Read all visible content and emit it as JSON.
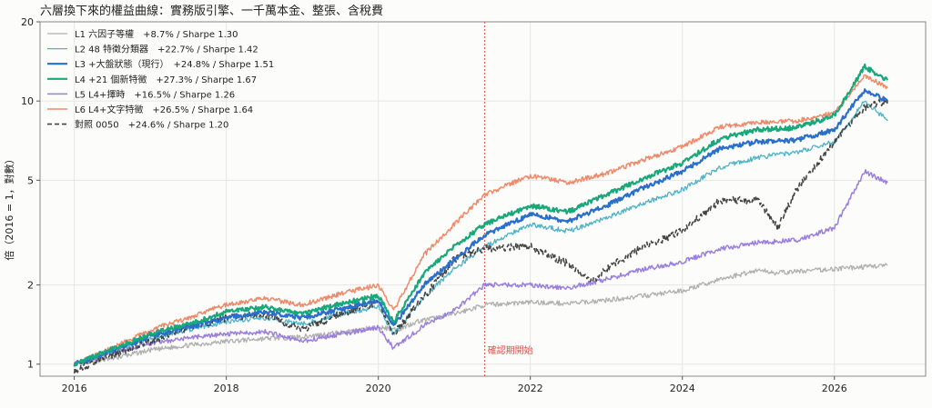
{
  "chart_data": {
    "type": "line",
    "title": "六層換下來的權益曲線：實務版引擎、一千萬本金、整張、含稅費",
    "ylabel": "倍（2016 = 1，對數）",
    "xlabel": "",
    "y_scale": "log",
    "ylim": [
      0.9,
      20
    ],
    "y_ticks": [
      1,
      2,
      5,
      10,
      20
    ],
    "y_tick_labels": [
      "1",
      "2",
      "5",
      "10",
      "20"
    ],
    "xlim": [
      2015.55,
      2027.2
    ],
    "x_ticks": [
      2016,
      2018,
      2020,
      2022,
      2024,
      2026
    ],
    "x_tick_labels": [
      "2016",
      "2018",
      "2020",
      "2022",
      "2024",
      "2026"
    ],
    "grid": true,
    "legend_position": "top-left",
    "annotation": {
      "x": 2021.4,
      "label": "確認期開始",
      "color": "#d9534f"
    },
    "series": [
      {
        "name": "L1 六因子等權　+8.7% / Sharpe 1.30",
        "color": "#b0b0b0",
        "dashed": false,
        "width": 1.3,
        "points": [
          [
            2016.0,
            1.0
          ],
          [
            2016.5,
            1.05
          ],
          [
            2017.0,
            1.13
          ],
          [
            2017.5,
            1.18
          ],
          [
            2018.0,
            1.22
          ],
          [
            2018.5,
            1.25
          ],
          [
            2019.0,
            1.27
          ],
          [
            2019.5,
            1.32
          ],
          [
            2020.0,
            1.38
          ],
          [
            2020.25,
            1.35
          ],
          [
            2020.5,
            1.45
          ],
          [
            2021.0,
            1.55
          ],
          [
            2021.4,
            1.68
          ],
          [
            2022.0,
            1.72
          ],
          [
            2022.5,
            1.7
          ],
          [
            2023.0,
            1.75
          ],
          [
            2023.5,
            1.82
          ],
          [
            2024.0,
            1.9
          ],
          [
            2024.5,
            2.1
          ],
          [
            2025.0,
            2.28
          ],
          [
            2025.25,
            2.22
          ],
          [
            2025.5,
            2.25
          ],
          [
            2026.0,
            2.3
          ],
          [
            2026.7,
            2.38
          ]
        ]
      },
      {
        "name": "L2 48 特徵分類器　+22.7% / Sharpe 1.42",
        "color": "#4fb3c8",
        "dashed": false,
        "width": 1.3,
        "points": [
          [
            2016.0,
            1.0
          ],
          [
            2016.5,
            1.12
          ],
          [
            2017.0,
            1.25
          ],
          [
            2017.5,
            1.35
          ],
          [
            2018.0,
            1.45
          ],
          [
            2018.5,
            1.5
          ],
          [
            2019.0,
            1.42
          ],
          [
            2019.5,
            1.55
          ],
          [
            2020.0,
            1.65
          ],
          [
            2020.2,
            1.3
          ],
          [
            2020.6,
            1.8
          ],
          [
            2021.0,
            2.3
          ],
          [
            2021.4,
            2.8
          ],
          [
            2022.0,
            3.4
          ],
          [
            2022.5,
            3.2
          ],
          [
            2023.0,
            3.6
          ],
          [
            2023.5,
            4.1
          ],
          [
            2024.0,
            4.6
          ],
          [
            2024.5,
            5.6
          ],
          [
            2025.0,
            6.1
          ],
          [
            2025.5,
            6.4
          ],
          [
            2026.0,
            7.0
          ],
          [
            2026.4,
            10.0
          ],
          [
            2026.7,
            8.4
          ]
        ]
      },
      {
        "name": "L3 +大盤狀態（現行）　+24.8% / Sharpe 1.51",
        "color": "#2a6fcc",
        "dashed": false,
        "width": 2.2,
        "points": [
          [
            2016.0,
            1.0
          ],
          [
            2016.5,
            1.12
          ],
          [
            2017.0,
            1.28
          ],
          [
            2017.5,
            1.38
          ],
          [
            2018.0,
            1.5
          ],
          [
            2018.5,
            1.58
          ],
          [
            2019.0,
            1.5
          ],
          [
            2019.5,
            1.62
          ],
          [
            2020.0,
            1.75
          ],
          [
            2020.2,
            1.4
          ],
          [
            2020.6,
            2.0
          ],
          [
            2021.0,
            2.5
          ],
          [
            2021.4,
            3.1
          ],
          [
            2022.0,
            3.7
          ],
          [
            2022.5,
            3.5
          ],
          [
            2023.0,
            4.0
          ],
          [
            2023.5,
            4.7
          ],
          [
            2024.0,
            5.4
          ],
          [
            2024.5,
            6.6
          ],
          [
            2025.0,
            7.0
          ],
          [
            2025.5,
            7.1
          ],
          [
            2026.0,
            7.8
          ],
          [
            2026.4,
            11.0
          ],
          [
            2026.7,
            10.0
          ]
        ]
      },
      {
        "name": "L4 +21 個新特徵　+27.3% / Sharpe 1.67",
        "color": "#18a87a",
        "dashed": false,
        "width": 2.2,
        "points": [
          [
            2016.0,
            1.0
          ],
          [
            2016.5,
            1.14
          ],
          [
            2017.0,
            1.3
          ],
          [
            2017.5,
            1.42
          ],
          [
            2018.0,
            1.58
          ],
          [
            2018.5,
            1.65
          ],
          [
            2019.0,
            1.56
          ],
          [
            2019.5,
            1.7
          ],
          [
            2020.0,
            1.82
          ],
          [
            2020.2,
            1.45
          ],
          [
            2020.6,
            2.2
          ],
          [
            2021.0,
            2.8
          ],
          [
            2021.4,
            3.4
          ],
          [
            2022.0,
            4.0
          ],
          [
            2022.5,
            3.8
          ],
          [
            2023.0,
            4.4
          ],
          [
            2023.5,
            5.1
          ],
          [
            2024.0,
            5.8
          ],
          [
            2024.5,
            7.2
          ],
          [
            2025.0,
            7.8
          ],
          [
            2025.5,
            7.9
          ],
          [
            2026.0,
            8.8
          ],
          [
            2026.4,
            13.5
          ],
          [
            2026.7,
            12.0
          ]
        ]
      },
      {
        "name": "L5 L4+擇時　+16.5% / Sharpe 1.26",
        "color": "#9b7fde",
        "dashed": false,
        "width": 1.5,
        "points": [
          [
            2016.0,
            1.0
          ],
          [
            2016.5,
            1.1
          ],
          [
            2017.0,
            1.2
          ],
          [
            2017.5,
            1.26
          ],
          [
            2018.0,
            1.3
          ],
          [
            2018.5,
            1.33
          ],
          [
            2019.0,
            1.22
          ],
          [
            2019.5,
            1.3
          ],
          [
            2020.0,
            1.38
          ],
          [
            2020.2,
            1.15
          ],
          [
            2020.6,
            1.4
          ],
          [
            2021.0,
            1.6
          ],
          [
            2021.4,
            2.0
          ],
          [
            2022.0,
            2.0
          ],
          [
            2022.5,
            1.95
          ],
          [
            2023.0,
            2.1
          ],
          [
            2023.5,
            2.3
          ],
          [
            2024.0,
            2.45
          ],
          [
            2024.5,
            2.75
          ],
          [
            2025.0,
            2.9
          ],
          [
            2025.5,
            2.95
          ],
          [
            2026.0,
            3.3
          ],
          [
            2026.4,
            5.4
          ],
          [
            2026.7,
            4.9
          ]
        ]
      },
      {
        "name": "L6 L4+文字特徵　+26.5% / Sharpe 1.64",
        "color": "#f0896a",
        "dashed": false,
        "width": 1.5,
        "points": [
          [
            2016.0,
            1.0
          ],
          [
            2016.5,
            1.15
          ],
          [
            2017.0,
            1.35
          ],
          [
            2017.5,
            1.5
          ],
          [
            2018.0,
            1.68
          ],
          [
            2018.5,
            1.78
          ],
          [
            2019.0,
            1.68
          ],
          [
            2019.5,
            1.85
          ],
          [
            2020.0,
            2.0
          ],
          [
            2020.2,
            1.6
          ],
          [
            2020.6,
            2.6
          ],
          [
            2021.0,
            3.4
          ],
          [
            2021.4,
            4.4
          ],
          [
            2022.0,
            5.2
          ],
          [
            2022.5,
            4.9
          ],
          [
            2023.0,
            5.3
          ],
          [
            2023.5,
            6.0
          ],
          [
            2024.0,
            6.7
          ],
          [
            2024.5,
            8.0
          ],
          [
            2025.0,
            8.3
          ],
          [
            2025.5,
            8.4
          ],
          [
            2026.0,
            9.0
          ],
          [
            2026.4,
            12.5
          ],
          [
            2026.7,
            11.2
          ]
        ]
      },
      {
        "name": "對照 0050　+24.6% / Sharpe 1.20",
        "color": "#444444",
        "dashed": true,
        "width": 1.6,
        "points": [
          [
            2016.0,
            0.95
          ],
          [
            2016.5,
            1.08
          ],
          [
            2017.0,
            1.22
          ],
          [
            2017.5,
            1.38
          ],
          [
            2018.0,
            1.5
          ],
          [
            2018.5,
            1.55
          ],
          [
            2019.0,
            1.35
          ],
          [
            2019.5,
            1.55
          ],
          [
            2020.0,
            1.72
          ],
          [
            2020.2,
            1.3
          ],
          [
            2020.6,
            1.8
          ],
          [
            2021.0,
            2.5
          ],
          [
            2021.4,
            2.75
          ],
          [
            2022.0,
            2.8
          ],
          [
            2022.5,
            2.4
          ],
          [
            2022.8,
            2.05
          ],
          [
            2023.0,
            2.3
          ],
          [
            2023.5,
            2.8
          ],
          [
            2024.0,
            3.2
          ],
          [
            2024.5,
            4.2
          ],
          [
            2025.0,
            4.2
          ],
          [
            2025.25,
            3.3
          ],
          [
            2025.5,
            4.6
          ],
          [
            2026.0,
            7.0
          ],
          [
            2026.4,
            9.5
          ],
          [
            2026.7,
            10.0
          ]
        ]
      }
    ]
  }
}
